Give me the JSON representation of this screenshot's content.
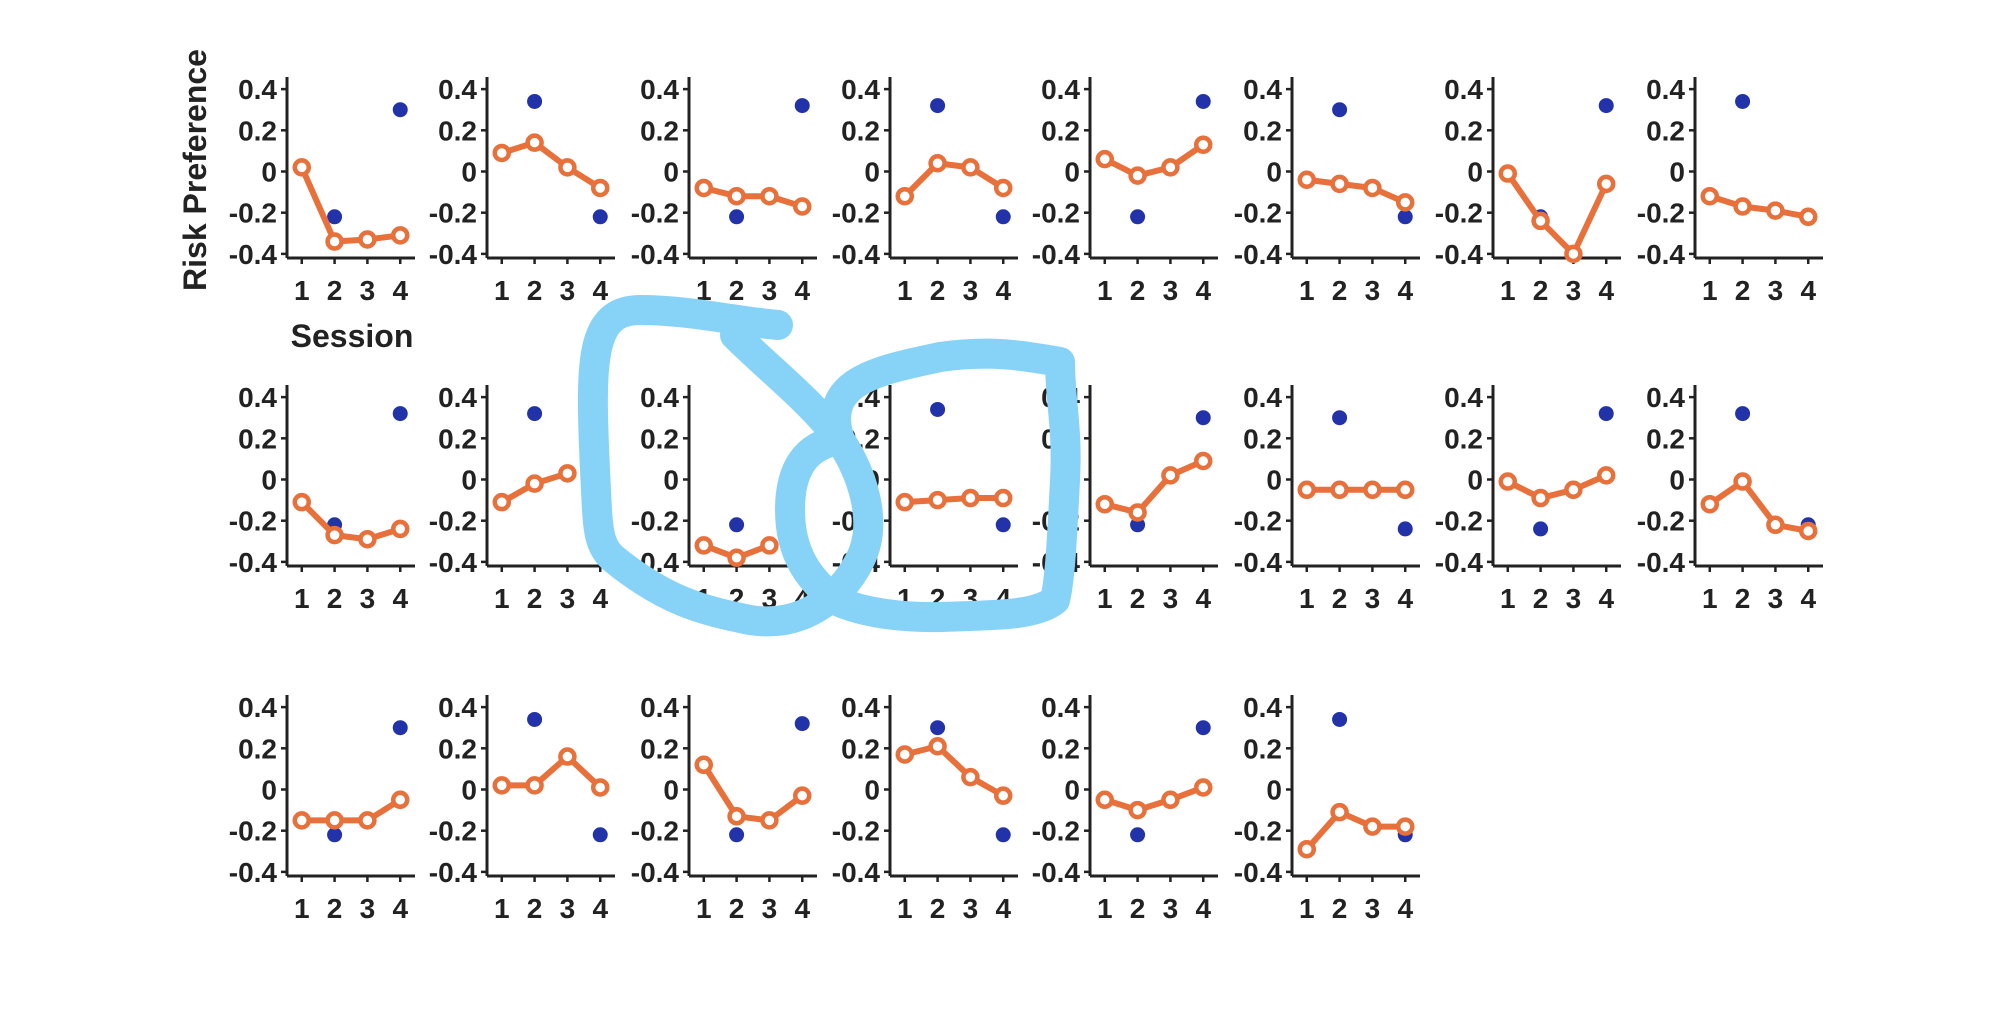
{
  "figure": {
    "ylabel": "Risk Preference",
    "xlabel": "Session"
  },
  "colors": {
    "series_line": "#e8703a",
    "dot": "#2233aa",
    "axis": "#222222",
    "scribble": "#87d3f8"
  },
  "chart_data": {
    "type": "line",
    "layout": "small-multiples, 3 rows x 8 columns (22 panels)",
    "x": [
      1,
      2,
      3,
      4
    ],
    "x_tick_labels": [
      "1",
      "2",
      "3",
      "4"
    ],
    "y_ticks": [
      0.4,
      0.2,
      0,
      -0.2,
      -0.4
    ],
    "y_tick_labels": [
      "0.4",
      "0.2",
      "0",
      "-0.2",
      "-0.4"
    ],
    "ylim": [
      -0.42,
      0.42
    ],
    "xlim": [
      0.55,
      4.45
    ],
    "grid": false,
    "markers": "open-circle line plus filled blue dots",
    "panels": [
      {
        "line": [
          0.02,
          -0.34,
          -0.33,
          -0.31
        ],
        "dots": [
          [
            2,
            -0.22
          ],
          [
            4,
            0.3
          ]
        ]
      },
      {
        "line": [
          0.09,
          0.14,
          0.02,
          -0.08
        ],
        "dots": [
          [
            2,
            0.34
          ],
          [
            4,
            -0.22
          ]
        ]
      },
      {
        "line": [
          -0.08,
          -0.12,
          -0.12,
          -0.17
        ],
        "dots": [
          [
            2,
            -0.22
          ],
          [
            4,
            0.32
          ]
        ]
      },
      {
        "line": [
          -0.12,
          0.04,
          0.02,
          -0.08
        ],
        "dots": [
          [
            2,
            0.32
          ],
          [
            4,
            -0.22
          ]
        ]
      },
      {
        "line": [
          0.06,
          -0.02,
          0.02,
          0.13
        ],
        "dots": [
          [
            2,
            -0.22
          ],
          [
            4,
            0.34
          ]
        ]
      },
      {
        "line": [
          -0.04,
          -0.06,
          -0.08,
          -0.15
        ],
        "dots": [
          [
            2,
            0.3
          ],
          [
            4,
            -0.22
          ]
        ]
      },
      {
        "line": [
          -0.01,
          -0.24,
          -0.4,
          -0.06
        ],
        "dots": [
          [
            2,
            -0.22
          ],
          [
            4,
            0.32
          ]
        ]
      },
      {
        "line": [
          -0.12,
          -0.17,
          -0.19,
          -0.22
        ],
        "dots": [
          [
            2,
            0.34
          ],
          [
            4,
            -0.22
          ]
        ]
      },
      {
        "line": [
          -0.11,
          -0.27,
          -0.29,
          -0.24
        ],
        "dots": [
          [
            2,
            -0.22
          ],
          [
            4,
            0.32
          ]
        ]
      },
      {
        "line": [
          -0.11,
          -0.02,
          0.03
        ],
        "dots": [
          [
            2,
            0.32
          ]
        ]
      },
      {
        "line": [
          -0.32,
          -0.38,
          -0.32
        ],
        "dots": [
          [
            2,
            -0.22
          ]
        ]
      },
      {
        "line": [
          -0.11,
          -0.1,
          -0.09,
          -0.09
        ],
        "dots": [
          [
            2,
            0.34
          ],
          [
            4,
            -0.22
          ]
        ]
      },
      {
        "line": [
          -0.12,
          -0.16,
          0.02,
          0.09
        ],
        "dots": [
          [
            2,
            -0.22
          ],
          [
            4,
            0.3
          ]
        ]
      },
      {
        "line": [
          -0.05,
          -0.05,
          -0.05,
          -0.05
        ],
        "dots": [
          [
            2,
            0.3
          ],
          [
            4,
            -0.24
          ]
        ]
      },
      {
        "line": [
          -0.01,
          -0.09,
          -0.05,
          0.02
        ],
        "dots": [
          [
            2,
            -0.24
          ],
          [
            4,
            0.32
          ]
        ]
      },
      {
        "line": [
          -0.12,
          -0.01,
          -0.22,
          -0.25
        ],
        "dots": [
          [
            2,
            0.32
          ],
          [
            4,
            -0.22
          ]
        ]
      },
      {
        "line": [
          -0.15,
          -0.15,
          -0.15,
          -0.05
        ],
        "dots": [
          [
            2,
            -0.22
          ],
          [
            4,
            0.3
          ]
        ]
      },
      {
        "line": [
          0.02,
          0.02,
          0.16,
          0.01
        ],
        "dots": [
          [
            2,
            0.34
          ],
          [
            4,
            -0.22
          ]
        ]
      },
      {
        "line": [
          0.12,
          -0.13,
          -0.15,
          -0.03
        ],
        "dots": [
          [
            2,
            -0.22
          ],
          [
            4,
            0.32
          ]
        ]
      },
      {
        "line": [
          0.17,
          0.21,
          0.06,
          -0.03
        ],
        "dots": [
          [
            2,
            0.3
          ],
          [
            4,
            -0.22
          ]
        ]
      },
      {
        "line": [
          -0.05,
          -0.1,
          -0.05,
          0.01
        ],
        "dots": [
          [
            2,
            -0.22
          ],
          [
            4,
            0.3
          ]
        ]
      },
      {
        "line": [
          -0.29,
          -0.11,
          -0.18,
          -0.18
        ],
        "dots": [
          [
            2,
            0.34
          ],
          [
            4,
            -0.22
          ]
        ]
      }
    ]
  }
}
